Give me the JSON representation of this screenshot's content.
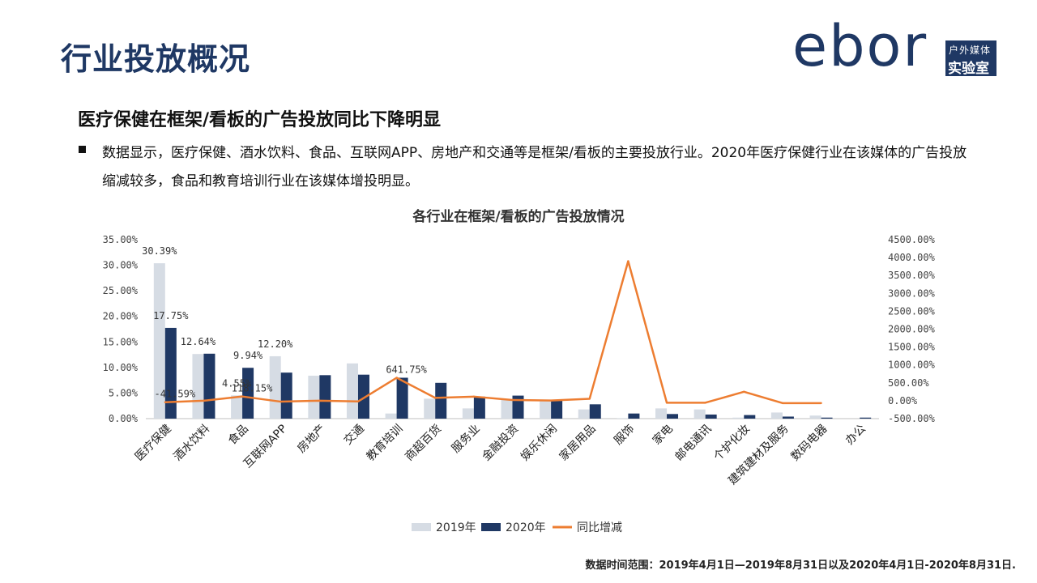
{
  "header": {
    "title": "行业投放概况",
    "logo_word": "ebor",
    "logo_line1": "户外媒体",
    "logo_line2": "实验室"
  },
  "subtitle": "医疗保健在框架/看板的广告投放同比下降明显",
  "bullet": "数据显示，医疗保健、酒水饮料、食品、互联网APP、房地产和交通等是框架/看板的主要投放行业。2020年医疗保健行业在该媒体的广告投放缩减较多，食品和教育培训行业在该媒体增投明显。",
  "footnote": "数据时间范围：2019年4月1日—2019年8月31日以及2020年4月1日-2020年8月31日.",
  "colors": {
    "y2019": "#d6dce4",
    "y2020": "#1f3864",
    "yoy": "#ed7d31",
    "title": "#1f3864"
  },
  "chart_data": {
    "type": "bar+line",
    "title": "各行业在框架/看板的广告投放情况",
    "categories": [
      "医疗保健",
      "酒水饮料",
      "食品",
      "互联网APP",
      "房地产",
      "交通",
      "教育培训",
      "商超百货",
      "服务业",
      "金融投资",
      "娱乐休闲",
      "家居用品",
      "服饰",
      "家电",
      "邮电通讯",
      "个护化妆",
      "建筑建材及服务",
      "数码电器",
      "办公"
    ],
    "series": [
      {
        "name": "2019年",
        "axis": "left",
        "type": "bar",
        "values": [
          30.39,
          12.64,
          4.55,
          12.2,
          8.4,
          10.8,
          1.0,
          3.9,
          2.0,
          3.7,
          3.4,
          1.8,
          0.1,
          2.0,
          1.8,
          0.2,
          1.2,
          0.6,
          0.0
        ]
      },
      {
        "name": "2020年",
        "axis": "left",
        "type": "bar",
        "values": [
          17.75,
          12.7,
          9.94,
          9.0,
          8.5,
          8.6,
          8.0,
          7.0,
          4.3,
          4.5,
          3.6,
          2.8,
          1.0,
          0.9,
          0.8,
          0.7,
          0.4,
          0.2,
          0.2
        ]
      },
      {
        "name": "同比增减",
        "axis": "right",
        "type": "line",
        "values": [
          -41.59,
          0.5,
          118.15,
          -26.2,
          1.2,
          -20.4,
          641.75,
          79.5,
          115.0,
          21.6,
          5.9,
          55.6,
          3900.0,
          -55.0,
          -55.6,
          250.0,
          -66.7,
          -66.7,
          null
        ]
      }
    ],
    "data_labels": [
      {
        "text": "30.39%",
        "series": "2019年",
        "index": 0
      },
      {
        "text": "17.75%",
        "series": "2020年",
        "index": 0
      },
      {
        "text": "-41.59%",
        "series": "同比增减",
        "index": 0
      },
      {
        "text": "12.64%",
        "series": "2019年",
        "index": 1
      },
      {
        "text": "9.94%",
        "series": "2020年",
        "index": 2
      },
      {
        "text": "4.55%",
        "series": "2019年",
        "index": 2
      },
      {
        "text": "12.20%",
        "series": "2019年",
        "index": 3
      },
      {
        "text": "118.15%",
        "series": "同比增减",
        "index": 2
      },
      {
        "text": "641.75%",
        "series": "同比增减",
        "index": 6
      }
    ],
    "y_left": {
      "min": 0,
      "max": 35,
      "step": 5,
      "format": "percent2"
    },
    "y_right": {
      "min": -500,
      "max": 4500,
      "step": 500,
      "format": "percent2"
    },
    "legend": [
      "2019年",
      "2020年",
      "同比增减"
    ],
    "legend_position": "bottom"
  }
}
